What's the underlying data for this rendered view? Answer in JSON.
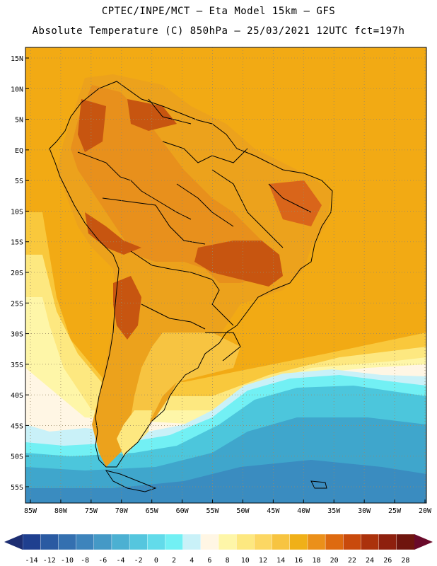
{
  "header": {
    "line1": "CPTEC/INPE/MCT –  Eta Model 15km – GFS",
    "line2": "Absolute Temperature (C) 850hPa – 25/03/2021 12UTC fct=197h"
  },
  "axes": {
    "lat_labels": [
      "15N",
      "10N",
      "5N",
      "EQ",
      "5S",
      "10S",
      "15S",
      "20S",
      "25S",
      "30S",
      "35S",
      "40S",
      "45S",
      "50S",
      "55S"
    ],
    "lon_labels": [
      "85W",
      "80W",
      "75W",
      "70W",
      "65W",
      "60W",
      "55W",
      "50W",
      "45W",
      "40W",
      "35W",
      "30W",
      "25W",
      "20W"
    ]
  },
  "colorbar": {
    "labels": [
      "-14",
      "-12",
      "-10",
      "-8",
      "-6",
      "-4",
      "-2",
      "0",
      "2",
      "4",
      "6",
      "8",
      "10",
      "12",
      "14",
      "16",
      "18",
      "20",
      "22",
      "24",
      "26",
      "28"
    ],
    "colors": [
      "#1f3f8f",
      "#2a5aa2",
      "#3470b0",
      "#3d84bc",
      "#4599c6",
      "#4cb0d2",
      "#55c6de",
      "#62dbea",
      "#72f0f4",
      "#c9f1f8",
      "#fff6e4",
      "#fef6a8",
      "#fde880",
      "#fcd763",
      "#f7c441",
      "#f0b018",
      "#eb901a",
      "#de6a10",
      "#c94a0c",
      "#ab320c",
      "#8e200e",
      "#6f150e"
    ],
    "end_left": "#1d2e72",
    "end_right": "#6a0a2a"
  },
  "field_colors": {
    "ocean_warm": "#f2aa14",
    "land_hot": "#e47a18",
    "land_hotter": "#c75510",
    "mild": "#fbd45a",
    "cool": "#fef0a0",
    "cold": "#4cc6dc",
    "colder": "#3fa6cc",
    "coldest": "#3a8cc0"
  }
}
